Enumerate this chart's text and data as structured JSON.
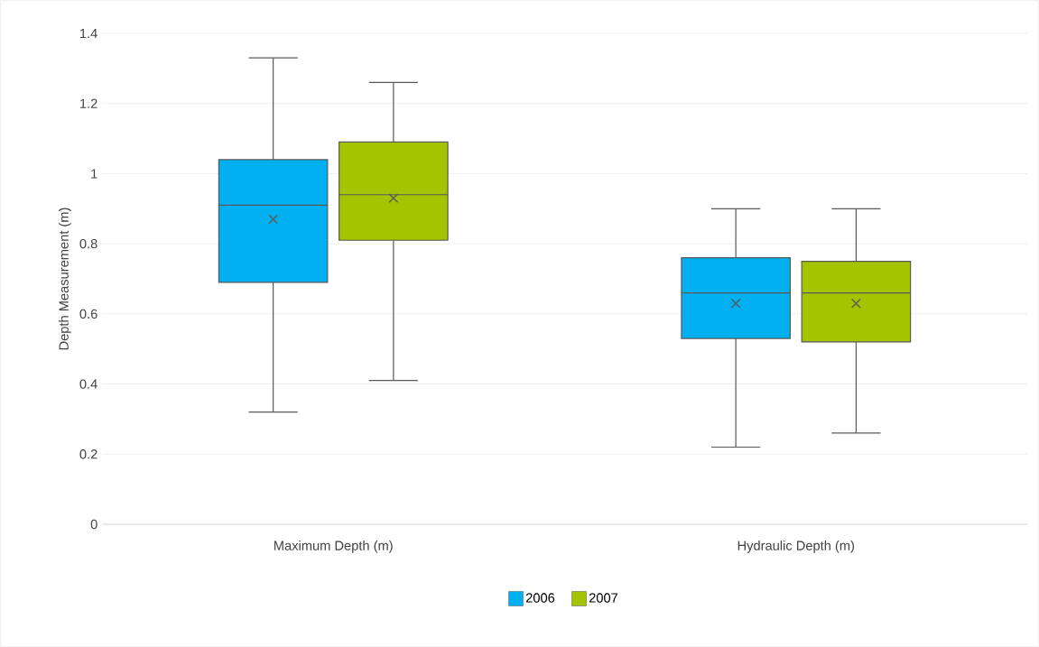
{
  "chart_data": {
    "type": "box",
    "ylabel": "Depth Measurement (m)",
    "categories": [
      "Maximum Depth (m)",
      "Hydraulic Depth (m)"
    ],
    "series": [
      {
        "name": "2006",
        "color": "#00b0f0",
        "boxes": [
          {
            "low": 0.32,
            "q1": 0.69,
            "median": 0.91,
            "q3": 1.04,
            "high": 1.33,
            "mean": 0.87
          },
          {
            "low": 0.22,
            "q1": 0.53,
            "median": 0.66,
            "q3": 0.76,
            "high": 0.9,
            "mean": 0.63
          }
        ]
      },
      {
        "name": "2007",
        "color": "#a5c400",
        "boxes": [
          {
            "low": 0.41,
            "q1": 0.81,
            "median": 0.94,
            "q3": 1.09,
            "high": 1.26,
            "mean": 0.93
          },
          {
            "low": 0.26,
            "q1": 0.52,
            "median": 0.66,
            "q3": 0.75,
            "high": 0.9,
            "mean": 0.63
          }
        ]
      }
    ],
    "ylim": [
      0,
      1.4
    ],
    "yticks": [
      0,
      0.2,
      0.4,
      0.6,
      0.8,
      1,
      1.2,
      1.4
    ],
    "grid": "y",
    "legend": "bottom"
  }
}
